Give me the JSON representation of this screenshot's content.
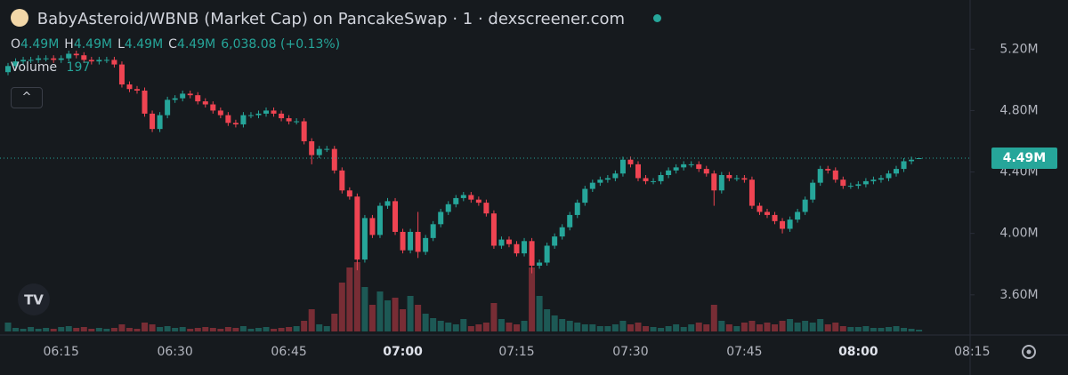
{
  "chart_data": {
    "type": "candlestick",
    "title": "BabyAsteroid/WBNB (Market Cap) on PancakeSwap · 1 · dexscreener.com",
    "ohlc_labels": [
      "O",
      "H",
      "L",
      "C"
    ],
    "ohlc_values": [
      "4.49M",
      "4.49M",
      "4.49M",
      "4.49M"
    ],
    "change": "6,038.08 (+0.13%)",
    "volume_label": "Volume",
    "volume_value": 197,
    "last_price_label": "4.49M",
    "last_price": 4.49,
    "up_color": "#26a69a",
    "down_color": "#ef4452",
    "x": [
      "06:08",
      "06:09",
      "06:10",
      "06:11",
      "06:12",
      "06:13",
      "06:14",
      "06:15",
      "06:16",
      "06:17",
      "06:18",
      "06:19",
      "06:20",
      "06:21",
      "06:22",
      "06:23",
      "06:24",
      "06:25",
      "06:26",
      "06:27",
      "06:28",
      "06:29",
      "06:30",
      "06:31",
      "06:32",
      "06:33",
      "06:34",
      "06:35",
      "06:36",
      "06:37",
      "06:38",
      "06:39",
      "06:40",
      "06:41",
      "06:42",
      "06:43",
      "06:44",
      "06:45",
      "06:46",
      "06:47",
      "06:48",
      "06:49",
      "06:50",
      "06:51",
      "06:52",
      "06:53",
      "06:54",
      "06:55",
      "06:56",
      "06:57",
      "06:58",
      "06:59",
      "07:00",
      "07:01",
      "07:02",
      "07:03",
      "07:04",
      "07:05",
      "07:06",
      "07:07",
      "07:08",
      "07:09",
      "07:10",
      "07:11",
      "07:12",
      "07:13",
      "07:14",
      "07:15",
      "07:16",
      "07:17",
      "07:18",
      "07:19",
      "07:20",
      "07:21",
      "07:22",
      "07:23",
      "07:24",
      "07:25",
      "07:26",
      "07:27",
      "07:28",
      "07:29",
      "07:30",
      "07:31",
      "07:32",
      "07:33",
      "07:34",
      "07:35",
      "07:36",
      "07:37",
      "07:38",
      "07:39",
      "07:40",
      "07:41",
      "07:42",
      "07:43",
      "07:44",
      "07:45",
      "07:46",
      "07:47",
      "07:48",
      "07:49",
      "07:50",
      "07:51",
      "07:52",
      "07:53",
      "07:54",
      "07:55",
      "07:56",
      "07:57",
      "07:58",
      "07:59",
      "08:00",
      "08:01",
      "08:02",
      "08:03",
      "08:04",
      "08:05",
      "08:06",
      "08:07",
      "08:08"
    ],
    "open": [
      5.05,
      5.09,
      5.12,
      5.13,
      5.13,
      5.14,
      5.14,
      5.13,
      5.14,
      5.17,
      5.16,
      5.13,
      5.12,
      5.13,
      5.13,
      5.1,
      4.97,
      4.94,
      4.93,
      4.78,
      4.68,
      4.77,
      4.87,
      4.88,
      4.91,
      4.9,
      4.86,
      4.84,
      4.8,
      4.77,
      4.72,
      4.71,
      4.77,
      4.77,
      4.78,
      4.8,
      4.78,
      4.75,
      4.73,
      4.73,
      4.6,
      4.51,
      4.55,
      4.55,
      4.41,
      4.28,
      4.24,
      3.83,
      4.1,
      3.99,
      4.18,
      4.21,
      4.01,
      3.89,
      4.01,
      3.88,
      3.97,
      4.06,
      4.14,
      4.19,
      4.23,
      4.25,
      4.22,
      4.2,
      4.13,
      3.92,
      3.96,
      3.93,
      3.87,
      3.95,
      3.79,
      3.81,
      3.92,
      3.98,
      4.04,
      4.12,
      4.2,
      4.29,
      4.33,
      4.35,
      4.36,
      4.39,
      4.48,
      4.45,
      4.36,
      4.34,
      4.34,
      4.38,
      4.41,
      4.43,
      4.45,
      4.45,
      4.42,
      4.39,
      4.28,
      4.38,
      4.36,
      4.36,
      4.35,
      4.18,
      4.14,
      4.12,
      4.08,
      4.03,
      4.09,
      4.14,
      4.22,
      4.33,
      4.42,
      4.41,
      4.35,
      4.31,
      4.31,
      4.32,
      4.34,
      4.35,
      4.36,
      4.39,
      4.42,
      4.47,
      4.49
    ],
    "high": [
      5.11,
      5.14,
      5.15,
      5.15,
      5.16,
      5.16,
      5.16,
      5.16,
      5.19,
      5.19,
      5.18,
      5.15,
      5.15,
      5.15,
      5.15,
      5.12,
      4.99,
      4.96,
      4.95,
      4.8,
      4.79,
      4.89,
      4.9,
      4.93,
      4.93,
      4.92,
      4.88,
      4.86,
      4.82,
      4.79,
      4.74,
      4.79,
      4.79,
      4.8,
      4.82,
      4.82,
      4.8,
      4.77,
      4.75,
      4.75,
      4.62,
      4.57,
      4.57,
      4.57,
      4.43,
      4.3,
      4.26,
      4.12,
      4.12,
      4.2,
      4.23,
      4.23,
      4.03,
      4.03,
      4.14,
      3.99,
      4.08,
      4.16,
      4.21,
      4.25,
      4.27,
      4.27,
      4.24,
      4.22,
      4.15,
      3.98,
      3.98,
      3.95,
      3.97,
      3.97,
      3.83,
      3.94,
      4.0,
      4.06,
      4.14,
      4.22,
      4.31,
      4.35,
      4.37,
      4.38,
      4.41,
      4.5,
      4.5,
      4.47,
      4.38,
      4.36,
      4.4,
      4.43,
      4.45,
      4.47,
      4.47,
      4.47,
      4.44,
      4.41,
      4.4,
      4.4,
      4.38,
      4.38,
      4.37,
      4.2,
      4.16,
      4.14,
      4.1,
      4.11,
      4.16,
      4.24,
      4.35,
      4.44,
      4.44,
      4.43,
      4.37,
      4.33,
      4.34,
      4.36,
      4.37,
      4.38,
      4.41,
      4.44,
      4.49,
      4.5,
      4.49
    ],
    "low": [
      5.03,
      5.07,
      5.1,
      5.11,
      5.11,
      5.12,
      5.11,
      5.11,
      5.12,
      5.14,
      5.11,
      5.1,
      5.1,
      5.11,
      5.08,
      4.95,
      4.92,
      4.91,
      4.76,
      4.66,
      4.66,
      4.75,
      4.85,
      4.86,
      4.88,
      4.84,
      4.82,
      4.78,
      4.75,
      4.7,
      4.69,
      4.69,
      4.75,
      4.75,
      4.76,
      4.76,
      4.73,
      4.71,
      4.71,
      4.58,
      4.45,
      4.49,
      4.53,
      4.39,
      4.26,
      4.22,
      3.76,
      3.81,
      3.97,
      3.97,
      4.16,
      3.99,
      3.87,
      3.87,
      3.84,
      3.86,
      3.95,
      4.04,
      4.12,
      4.17,
      4.21,
      4.2,
      4.18,
      4.11,
      3.9,
      3.9,
      3.91,
      3.85,
      3.85,
      3.74,
      3.77,
      3.79,
      3.9,
      3.96,
      4.02,
      4.1,
      4.18,
      4.27,
      4.31,
      4.33,
      4.34,
      4.37,
      4.43,
      4.34,
      4.32,
      4.32,
      4.32,
      4.36,
      4.39,
      4.41,
      4.43,
      4.4,
      4.37,
      4.18,
      4.26,
      4.34,
      4.34,
      4.33,
      4.16,
      4.12,
      4.1,
      4.06,
      4.0,
      4.01,
      4.07,
      4.12,
      4.2,
      4.31,
      4.39,
      4.33,
      4.29,
      4.29,
      4.29,
      4.3,
      4.32,
      4.33,
      4.34,
      4.37,
      4.4,
      4.45,
      4.49
    ],
    "close": [
      5.09,
      5.12,
      5.13,
      5.13,
      5.14,
      5.14,
      5.13,
      5.14,
      5.17,
      5.16,
      5.13,
      5.12,
      5.13,
      5.13,
      5.1,
      4.97,
      4.94,
      4.93,
      4.78,
      4.68,
      4.77,
      4.87,
      4.88,
      4.91,
      4.9,
      4.86,
      4.84,
      4.8,
      4.77,
      4.72,
      4.71,
      4.77,
      4.77,
      4.78,
      4.8,
      4.78,
      4.75,
      4.73,
      4.73,
      4.6,
      4.51,
      4.55,
      4.55,
      4.41,
      4.28,
      4.24,
      3.83,
      4.1,
      3.99,
      4.18,
      4.21,
      4.01,
      3.89,
      4.01,
      3.88,
      3.97,
      4.06,
      4.14,
      4.19,
      4.23,
      4.25,
      4.22,
      4.2,
      4.13,
      3.92,
      3.96,
      3.93,
      3.87,
      3.95,
      3.79,
      3.81,
      3.92,
      3.98,
      4.04,
      4.12,
      4.2,
      4.29,
      4.33,
      4.35,
      4.36,
      4.39,
      4.48,
      4.45,
      4.36,
      4.34,
      4.34,
      4.38,
      4.41,
      4.43,
      4.45,
      4.45,
      4.42,
      4.39,
      4.28,
      4.38,
      4.36,
      4.36,
      4.35,
      4.18,
      4.14,
      4.12,
      4.08,
      4.03,
      4.09,
      4.14,
      4.22,
      4.33,
      4.42,
      4.41,
      4.35,
      4.31,
      4.31,
      4.32,
      4.34,
      4.35,
      4.36,
      4.39,
      4.42,
      4.47,
      4.48,
      4.49
    ],
    "volume": [
      1000,
      400,
      300,
      500,
      300,
      400,
      300,
      500,
      600,
      400,
      500,
      300,
      400,
      300,
      400,
      800,
      400,
      300,
      1000,
      800,
      500,
      600,
      400,
      500,
      300,
      400,
      500,
      400,
      300,
      500,
      400,
      600,
      300,
      400,
      500,
      300,
      400,
      500,
      600,
      1200,
      2500,
      800,
      600,
      2000,
      5500,
      7200,
      7800,
      5000,
      3000,
      4500,
      3500,
      3800,
      2500,
      4000,
      3000,
      2000,
      1500,
      1200,
      1000,
      800,
      1400,
      600,
      800,
      1000,
      3200,
      1400,
      1000,
      800,
      1200,
      7200,
      4000,
      2500,
      1800,
      1400,
      1200,
      1000,
      800,
      800,
      600,
      600,
      800,
      1200,
      800,
      1000,
      600,
      500,
      400,
      600,
      800,
      500,
      800,
      1000,
      800,
      3000,
      1200,
      800,
      600,
      1000,
      1200,
      800,
      1000,
      800,
      1200,
      1400,
      1000,
      1200,
      1000,
      1400,
      800,
      1000,
      600,
      500,
      500,
      600,
      400,
      400,
      500,
      600,
      400,
      300,
      197
    ],
    "ylim": [
      3.35,
      5.52
    ],
    "yticks": [
      {
        "value": 5.2,
        "label": "5.20M"
      },
      {
        "value": 4.8,
        "label": "4.80M"
      },
      {
        "value": 4.4,
        "label": "4.40M"
      },
      {
        "value": 4.0,
        "label": "4.00M"
      },
      {
        "value": 3.6,
        "label": "3.60M"
      }
    ],
    "xticks": [
      "06:15",
      "06:30",
      "06:45",
      "07:00",
      "07:15",
      "07:30",
      "07:45",
      "08:00",
      "08:15"
    ]
  }
}
